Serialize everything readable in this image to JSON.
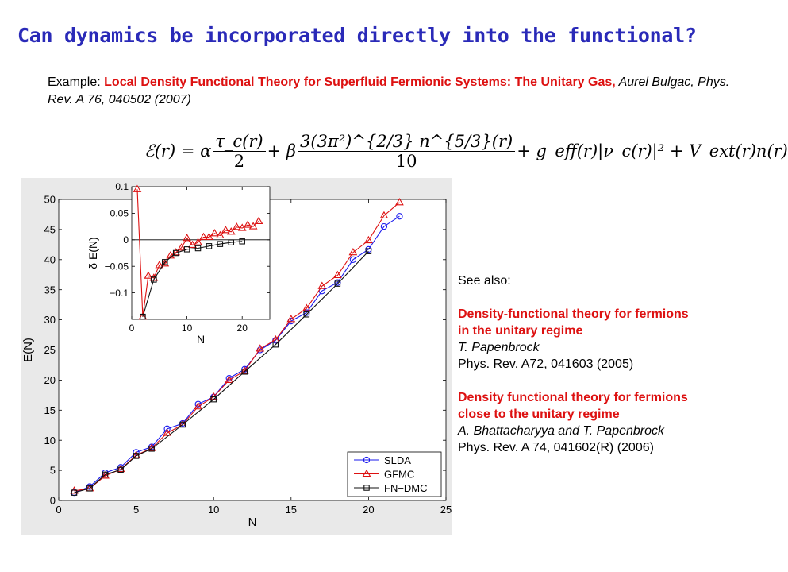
{
  "title": "Can dynamics be incorporated directly into the functional?",
  "example": {
    "prefix": "Example: ",
    "paper_title": "Local Density Functional Theory for Superfluid Fermionic Systems: The Unitary Gas,",
    "citation": " Aurel Bulgac, Phys. Rev. A 76, 040502 (2007)"
  },
  "formula": {
    "lhs": "ℰ(r) = α",
    "tau": "τ_c(r)",
    "two": "2",
    "plus_beta": "+ β",
    "num": "3(3π²)^{2/3} n^{5/3}(r)",
    "ten": "10",
    "rest": "+ g_eff(r)|ν_c(r)|² + V_ext(r)n(r)"
  },
  "see_also": {
    "heading": "See also:",
    "refs": [
      {
        "title1": "Density-functional theory for fermions",
        "title2": "in the unitary regime",
        "authors": "T. Papenbrock",
        "journal": "Phys. Rev. A72, 041603 (2005)"
      },
      {
        "title1": "Density functional theory for fermions",
        "title2": "close to the unitary regime",
        "authors": "A. Bhattacharyya and T. Papenbrock",
        "journal": "Phys. Rev. A 74, 041602(R) (2006)"
      }
    ]
  },
  "chart_data": [
    {
      "type": "line",
      "xlabel": "N",
      "ylabel": "E(N)",
      "xlim": [
        0,
        25
      ],
      "ylim": [
        0,
        50
      ],
      "xticks": [
        0,
        5,
        10,
        15,
        20,
        25
      ],
      "yticks": [
        0,
        5,
        10,
        15,
        20,
        25,
        30,
        35,
        40,
        45,
        50
      ],
      "legend_position": "bottom-right",
      "series": [
        {
          "name": "SLDA",
          "color": "#1a1aee",
          "marker": "circle",
          "x": [
            1,
            2,
            3,
            4,
            5,
            6,
            7,
            8,
            9,
            10,
            11,
            12,
            13,
            14,
            15,
            16,
            17,
            18,
            19,
            20,
            21,
            22
          ],
          "y": [
            1.3,
            2.3,
            4.6,
            5.5,
            8.0,
            8.9,
            11.9,
            12.8,
            16.0,
            17.2,
            20.3,
            21.8,
            25.0,
            26.6,
            29.8,
            31.2,
            34.8,
            36.2,
            40.0,
            41.7,
            45.5,
            47.2
          ]
        },
        {
          "name": "GFMC",
          "color": "#dd1111",
          "marker": "triangle",
          "x": [
            1,
            2,
            3,
            4,
            5,
            6,
            7,
            8,
            9,
            10,
            11,
            12,
            13,
            14,
            15,
            16,
            17,
            18,
            19,
            20,
            21,
            22
          ],
          "y": [
            1.6,
            2.0,
            4.1,
            5.2,
            7.5,
            8.7,
            11.2,
            12.6,
            15.6,
            17.2,
            20.0,
            21.5,
            25.2,
            26.7,
            30.1,
            31.9,
            35.6,
            37.4,
            41.2,
            43.2,
            47.3,
            49.5
          ]
        },
        {
          "name": "FN−DMC",
          "color": "#111111",
          "marker": "square",
          "x": [
            1,
            2,
            3,
            4,
            5,
            6,
            8,
            10,
            12,
            14,
            16,
            18,
            20
          ],
          "y": [
            1.3,
            2.0,
            4.3,
            5.1,
            7.4,
            8.6,
            12.6,
            16.8,
            21.4,
            25.9,
            30.9,
            36.0,
            41.4
          ]
        }
      ]
    },
    {
      "type": "line",
      "xlabel": "N",
      "ylabel": "δ E(N)",
      "xlim": [
        0,
        25
      ],
      "ylim": [
        -0.15,
        0.1
      ],
      "xticks": [
        0,
        10,
        20
      ],
      "yticks": [
        -0.1,
        -0.05,
        0,
        0.05,
        0.1
      ],
      "ytick_labels": [
        "−0.1",
        "−0.05",
        "0",
        "0.05",
        "0.1"
      ],
      "series": [
        {
          "name": "GFMC",
          "color": "#dd1111",
          "marker": "triangle",
          "x": [
            1,
            2,
            3,
            4,
            5,
            6,
            7,
            8,
            9,
            10,
            11,
            12,
            13,
            14,
            15,
            16,
            17,
            18,
            19,
            20,
            21,
            22,
            23
          ],
          "y": [
            0.095,
            -0.145,
            -0.068,
            -0.072,
            -0.048,
            -0.045,
            -0.03,
            -0.024,
            -0.015,
            0.003,
            -0.01,
            -0.005,
            0.005,
            0.005,
            0.012,
            0.008,
            0.018,
            0.015,
            0.024,
            0.022,
            0.028,
            0.025,
            0.035
          ]
        },
        {
          "name": "FN−DMC",
          "color": "#111111",
          "marker": "square",
          "x": [
            2,
            4,
            6,
            8,
            10,
            12,
            14,
            16,
            18,
            20
          ],
          "y": [
            -0.145,
            -0.075,
            -0.042,
            -0.025,
            -0.018,
            -0.016,
            -0.012,
            -0.008,
            -0.005,
            -0.003
          ]
        }
      ]
    }
  ]
}
